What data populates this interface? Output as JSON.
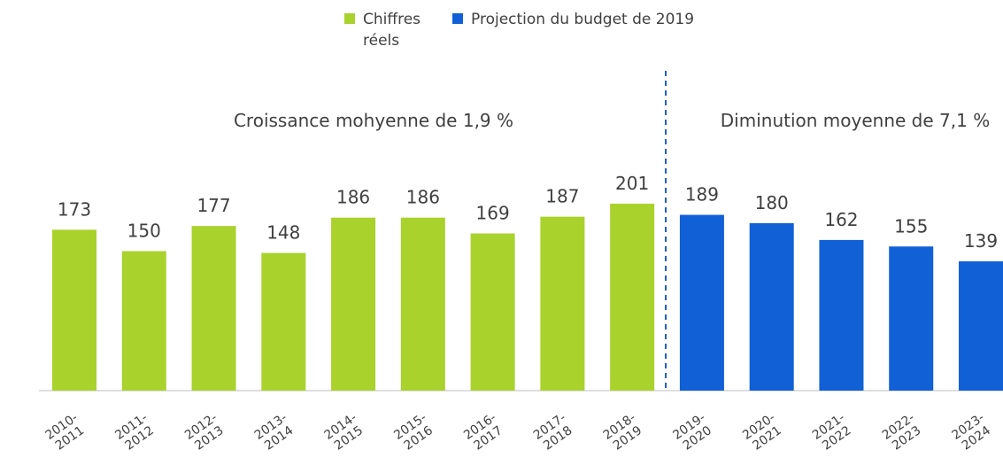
{
  "chart_data": {
    "type": "bar",
    "categories": [
      "2010-2011",
      "2011-2012",
      "2012-2013",
      "2013-2014",
      "2014-2015",
      "2015-2016",
      "2016-2017",
      "2017-2018",
      "2018-2019",
      "2019-2020",
      "2020-2021",
      "2021-2022",
      "2022-2023",
      "2023-2024"
    ],
    "series": [
      {
        "name": "Chiffres réels",
        "color": "#a9d22c",
        "values": [
          173,
          150,
          177,
          148,
          186,
          186,
          169,
          187,
          201,
          null,
          null,
          null,
          null,
          null
        ]
      },
      {
        "name": "Projection du budget de 2019",
        "color": "#1160d6",
        "values": [
          null,
          null,
          null,
          null,
          null,
          null,
          null,
          null,
          null,
          189,
          180,
          162,
          155,
          139
        ]
      }
    ],
    "annotations": [
      "Croissance mohyenne de 1,9 %",
      "Diminution moyenne de 7,1 %"
    ],
    "legend": "top"
  }
}
